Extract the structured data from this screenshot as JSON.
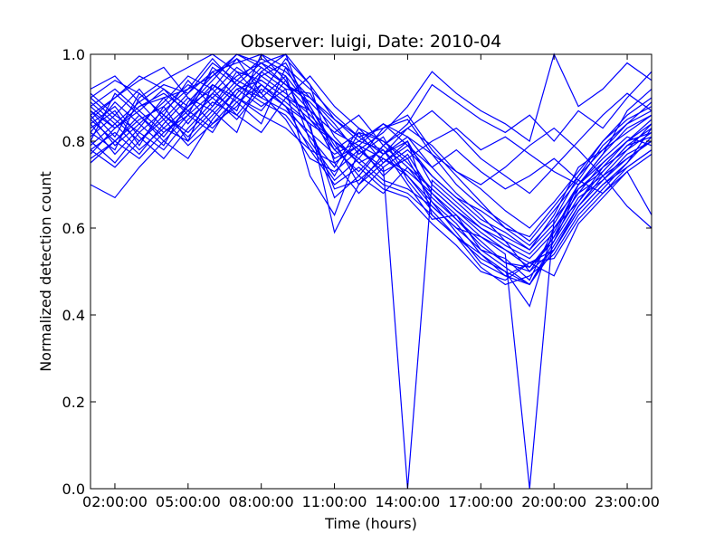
{
  "chart_data": {
    "type": "line",
    "title": "Observer: luigi, Date: 2010-04",
    "xlabel": "Time (hours)",
    "ylabel": "Normalized detection count",
    "x_tick_labels": [
      "02:00:00",
      "05:00:00",
      "08:00:00",
      "11:00:00",
      "14:00:00",
      "17:00:00",
      "20:00:00",
      "23:00:00"
    ],
    "x_tick_hours": [
      2,
      5,
      8,
      11,
      14,
      17,
      20,
      23
    ],
    "y_tick_labels": [
      "0.0",
      "0.2",
      "0.4",
      "0.6",
      "0.8",
      "1.0"
    ],
    "y_ticks": [
      0.0,
      0.2,
      0.4,
      0.6,
      0.8,
      1.0
    ],
    "xlim": [
      1,
      24
    ],
    "ylim": [
      0,
      1
    ],
    "grid": false,
    "line_color": "#0000ff",
    "x_hours": [
      1,
      2,
      3,
      4,
      5,
      6,
      7,
      8,
      9,
      10,
      11,
      12,
      13,
      14,
      15,
      16,
      17,
      18,
      19,
      20,
      21,
      22,
      23,
      24
    ],
    "series": [
      {
        "values": [
          0.87,
          0.83,
          0.88,
          0.9,
          0.92,
          0.95,
          1.0,
          0.97,
          0.93,
          0.9,
          0.85,
          0.8,
          0.78,
          0.72,
          0.65,
          0.6,
          0.58,
          0.55,
          0.52,
          0.55,
          0.65,
          0.72,
          0.78,
          0.82
        ]
      },
      {
        "values": [
          0.8,
          0.75,
          0.82,
          0.78,
          0.85,
          0.9,
          0.95,
          0.98,
          0.95,
          0.88,
          0.78,
          0.82,
          0.75,
          0.8,
          0.7,
          0.65,
          0.6,
          0.57,
          0.5,
          0.58,
          0.7,
          0.75,
          0.8,
          0.84
        ]
      },
      {
        "values": [
          0.75,
          0.8,
          0.85,
          0.88,
          0.8,
          0.93,
          0.9,
          0.96,
          1.0,
          0.85,
          0.8,
          0.75,
          0.78,
          0.7,
          0.62,
          0.63,
          0.55,
          0.53,
          0.48,
          0.6,
          0.68,
          0.72,
          0.76,
          0.8
        ]
      },
      {
        "values": [
          0.7,
          0.67,
          0.74,
          0.8,
          0.76,
          0.85,
          0.92,
          0.94,
          0.9,
          0.87,
          0.82,
          0.79,
          0.76,
          0.73,
          0.68,
          0.62,
          0.57,
          0.52,
          0.5,
          0.55,
          0.64,
          0.7,
          0.74,
          0.78
        ]
      },
      {
        "values": [
          0.85,
          0.9,
          0.95,
          0.92,
          0.88,
          0.96,
          0.98,
          1.0,
          0.97,
          0.92,
          0.86,
          0.81,
          0.83,
          0.86,
          0.78,
          0.72,
          0.66,
          0.6,
          0.56,
          0.62,
          0.72,
          0.8,
          0.86,
          0.9
        ]
      },
      {
        "values": [
          0.9,
          0.85,
          0.8,
          0.86,
          0.82,
          0.88,
          0.94,
          0.91,
          0.99,
          0.93,
          0.75,
          0.68,
          0.74,
          0.78,
          0.72,
          0.67,
          0.62,
          0.59,
          0.55,
          0.63,
          0.74,
          0.78,
          0.82,
          0.86
        ]
      },
      {
        "values": [
          0.78,
          0.82,
          0.77,
          0.84,
          0.9,
          0.87,
          0.82,
          0.96,
          0.92,
          0.72,
          0.63,
          0.78,
          0.73,
          0.76,
          0.66,
          0.61,
          0.54,
          0.49,
          0.47,
          0.57,
          0.69,
          0.73,
          0.79,
          0.81
        ]
      },
      {
        "values": [
          0.88,
          0.92,
          0.87,
          0.82,
          0.86,
          0.91,
          0.97,
          0.93,
          0.89,
          0.84,
          0.59,
          0.7,
          0.77,
          0.8,
          0.63,
          0.58,
          0.53,
          0.5,
          0.42,
          0.6,
          0.66,
          0.74,
          0.8,
          0.85
        ]
      },
      {
        "values": [
          0.82,
          0.78,
          0.9,
          0.94,
          0.97,
          1.0,
          0.96,
          0.9,
          0.95,
          0.8,
          0.72,
          0.82,
          0.8,
          0.75,
          0.69,
          0.64,
          0.6,
          0.56,
          0.53,
          0.59,
          0.7,
          0.76,
          0.81,
          0.79
        ]
      },
      {
        "values": [
          0.92,
          0.95,
          0.89,
          0.93,
          0.91,
          0.98,
          0.94,
          0.99,
          0.96,
          0.9,
          0.84,
          0.77,
          0.81,
          0.71,
          0.64,
          0.58,
          0.51,
          0.47,
          0.49,
          0.54,
          0.63,
          0.69,
          0.75,
          0.83
        ]
      },
      {
        "values": [
          0.84,
          0.88,
          0.81,
          0.76,
          0.83,
          0.89,
          0.86,
          0.93,
          0.88,
          0.78,
          0.7,
          0.74,
          0.69,
          0.67,
          0.61,
          0.56,
          0.5,
          0.48,
          0.52,
          0.49,
          0.61,
          0.67,
          0.73,
          0.77
        ]
      },
      {
        "values": [
          0.86,
          0.79,
          0.84,
          0.89,
          0.95,
          0.92,
          0.99,
          0.95,
          0.91,
          0.86,
          0.8,
          0.76,
          0.83,
          0.85,
          0.77,
          0.7,
          0.65,
          0.61,
          0.57,
          0.64,
          0.71,
          0.79,
          0.84,
          0.87
        ]
      },
      {
        "values": [
          0.81,
          0.86,
          0.92,
          0.85,
          0.79,
          0.84,
          0.9,
          0.87,
          0.94,
          0.83,
          0.67,
          0.72,
          0.79,
          0.74,
          0.67,
          0.62,
          0.56,
          0.52,
          0.51,
          0.58,
          0.67,
          0.71,
          0.77,
          0.8
        ]
      },
      {
        "values": [
          0.89,
          0.84,
          0.78,
          0.83,
          0.88,
          0.94,
          1.0,
          0.98,
          0.93,
          0.89,
          0.83,
          0.78,
          0.74,
          0.0,
          0.71,
          0.66,
          0.61,
          0.58,
          0.55,
          0.61,
          0.7,
          0.77,
          0.83,
          0.86
        ]
      },
      {
        "values": [
          0.77,
          0.83,
          0.88,
          0.91,
          0.87,
          0.93,
          0.89,
          0.84,
          0.97,
          0.87,
          0.76,
          0.79,
          0.72,
          0.77,
          0.68,
          0.63,
          0.58,
          0.54,
          0.0,
          0.62,
          0.69,
          0.74,
          0.78,
          0.84
        ]
      },
      {
        "values": [
          0.83,
          0.87,
          0.79,
          0.88,
          0.93,
          0.9,
          0.85,
          0.92,
          0.88,
          0.81,
          0.74,
          0.83,
          0.77,
          0.81,
          0.74,
          0.68,
          0.63,
          0.57,
          0.54,
          0.6,
          0.68,
          0.75,
          0.8,
          0.82
        ]
      },
      {
        "values": [
          0.8,
          0.91,
          0.86,
          0.8,
          0.86,
          0.97,
          0.93,
          0.89,
          0.86,
          0.79,
          0.71,
          0.76,
          0.71,
          0.69,
          0.65,
          0.6,
          0.55,
          0.51,
          0.47,
          0.56,
          0.65,
          0.71,
          0.76,
          0.8
        ]
      },
      {
        "values": [
          0.87,
          0.81,
          0.91,
          0.86,
          0.94,
          0.88,
          0.96,
          0.94,
          0.9,
          0.85,
          0.78,
          0.73,
          0.79,
          0.83,
          0.79,
          0.73,
          0.69,
          0.64,
          0.6,
          0.66,
          0.73,
          0.8,
          0.85,
          0.88
        ]
      },
      {
        "values": [
          0.84,
          0.77,
          0.83,
          0.9,
          0.84,
          0.91,
          0.87,
          1.0,
          0.94,
          0.83,
          0.69,
          0.71,
          0.76,
          0.72,
          0.66,
          0.59,
          0.52,
          0.49,
          0.52,
          0.53,
          0.62,
          0.68,
          0.74,
          0.78
        ]
      },
      {
        "values": [
          0.91,
          0.86,
          0.82,
          0.87,
          0.92,
          0.99,
          0.93,
          0.9,
          0.87,
          0.82,
          0.77,
          0.8,
          0.84,
          0.79,
          0.72,
          0.67,
          0.64,
          0.6,
          0.58,
          0.65,
          0.72,
          0.78,
          0.84,
          0.89
        ]
      },
      {
        "values": [
          0.79,
          0.84,
          0.89,
          0.83,
          0.8,
          0.86,
          0.92,
          0.88,
          0.92,
          0.91,
          0.81,
          0.75,
          0.7,
          0.68,
          0.63,
          0.58,
          0.54,
          0.5,
          0.47,
          0.55,
          0.64,
          0.7,
          0.75,
          0.81
        ]
      },
      {
        "values": [
          0.86,
          0.9,
          0.94,
          0.97,
          0.9,
          0.84,
          0.88,
          0.95,
          0.98,
          0.88,
          0.79,
          0.72,
          0.68,
          0.74,
          0.69,
          0.64,
          0.59,
          0.55,
          0.51,
          0.57,
          0.66,
          0.73,
          0.79,
          0.83
        ]
      },
      {
        "values": [
          0.82,
          0.89,
          0.84,
          0.79,
          0.89,
          0.95,
          0.99,
          0.91,
          0.85,
          0.76,
          0.73,
          0.78,
          0.82,
          0.88,
          0.96,
          0.91,
          0.87,
          0.84,
          0.8,
          1.0,
          0.88,
          0.92,
          0.98,
          0.94
        ]
      },
      {
        "values": [
          0.88,
          0.83,
          0.87,
          0.92,
          0.86,
          0.82,
          0.91,
          0.97,
          0.93,
          0.87,
          0.82,
          0.86,
          0.79,
          0.84,
          0.93,
          0.89,
          0.85,
          0.82,
          0.86,
          0.8,
          0.87,
          0.83,
          0.9,
          0.96
        ]
      },
      {
        "values": [
          0.76,
          0.8,
          0.86,
          0.81,
          0.88,
          0.92,
          0.86,
          0.82,
          0.9,
          0.95,
          0.88,
          0.83,
          0.8,
          0.76,
          0.8,
          0.83,
          0.78,
          0.81,
          0.77,
          0.73,
          0.7,
          0.77,
          0.87,
          0.92
        ]
      },
      {
        "values": [
          0.85,
          0.8,
          0.76,
          0.82,
          0.87,
          0.83,
          0.89,
          0.93,
          0.88,
          0.84,
          0.8,
          0.7,
          0.75,
          0.79,
          0.74,
          0.78,
          0.73,
          0.69,
          0.72,
          0.76,
          0.71,
          0.68,
          0.73,
          0.63
        ]
      },
      {
        "values": [
          0.9,
          0.94,
          0.91,
          0.86,
          0.81,
          0.87,
          0.93,
          0.98,
          1.0,
          0.93,
          0.85,
          0.81,
          0.77,
          0.83,
          0.87,
          0.82,
          0.76,
          0.72,
          0.68,
          0.74,
          0.8,
          0.86,
          0.91,
          0.87
        ]
      },
      {
        "values": [
          0.78,
          0.74,
          0.8,
          0.85,
          0.91,
          0.96,
          0.9,
          0.86,
          0.83,
          0.78,
          0.75,
          0.79,
          0.84,
          0.81,
          0.77,
          0.73,
          0.7,
          0.74,
          0.79,
          0.83,
          0.78,
          0.72,
          0.65,
          0.6
        ]
      }
    ]
  }
}
